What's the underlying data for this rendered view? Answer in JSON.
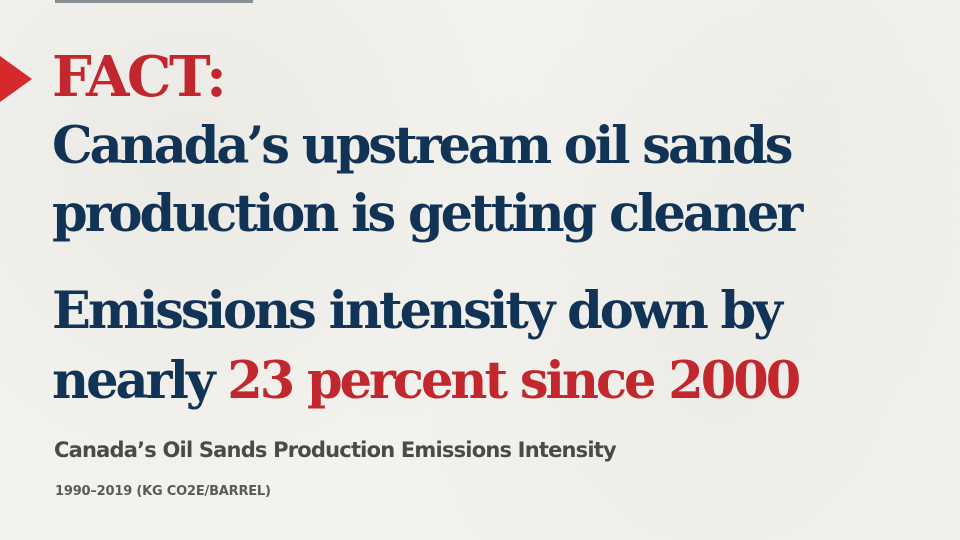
{
  "header": {
    "fact_label": "FACT:",
    "headline_line1": "Canada’s upstream oil sands",
    "headline_line2": "production is getting cleaner"
  },
  "stat": {
    "line1": "Emissions intensity down by",
    "line2_prefix": "nearly ",
    "line2_highlight": "23 percent since 2000"
  },
  "chart": {
    "title": "Canada’s Oil Sands Production Emissions Intensity",
    "subtitle": "1990–2019 (KG CO2E/BARREL)"
  },
  "colors": {
    "navy": "#113355",
    "red": "#c1272d",
    "marker_red": "#d42a2c",
    "gray_text": "#4a4a4a",
    "background": "#f3f2ee"
  }
}
